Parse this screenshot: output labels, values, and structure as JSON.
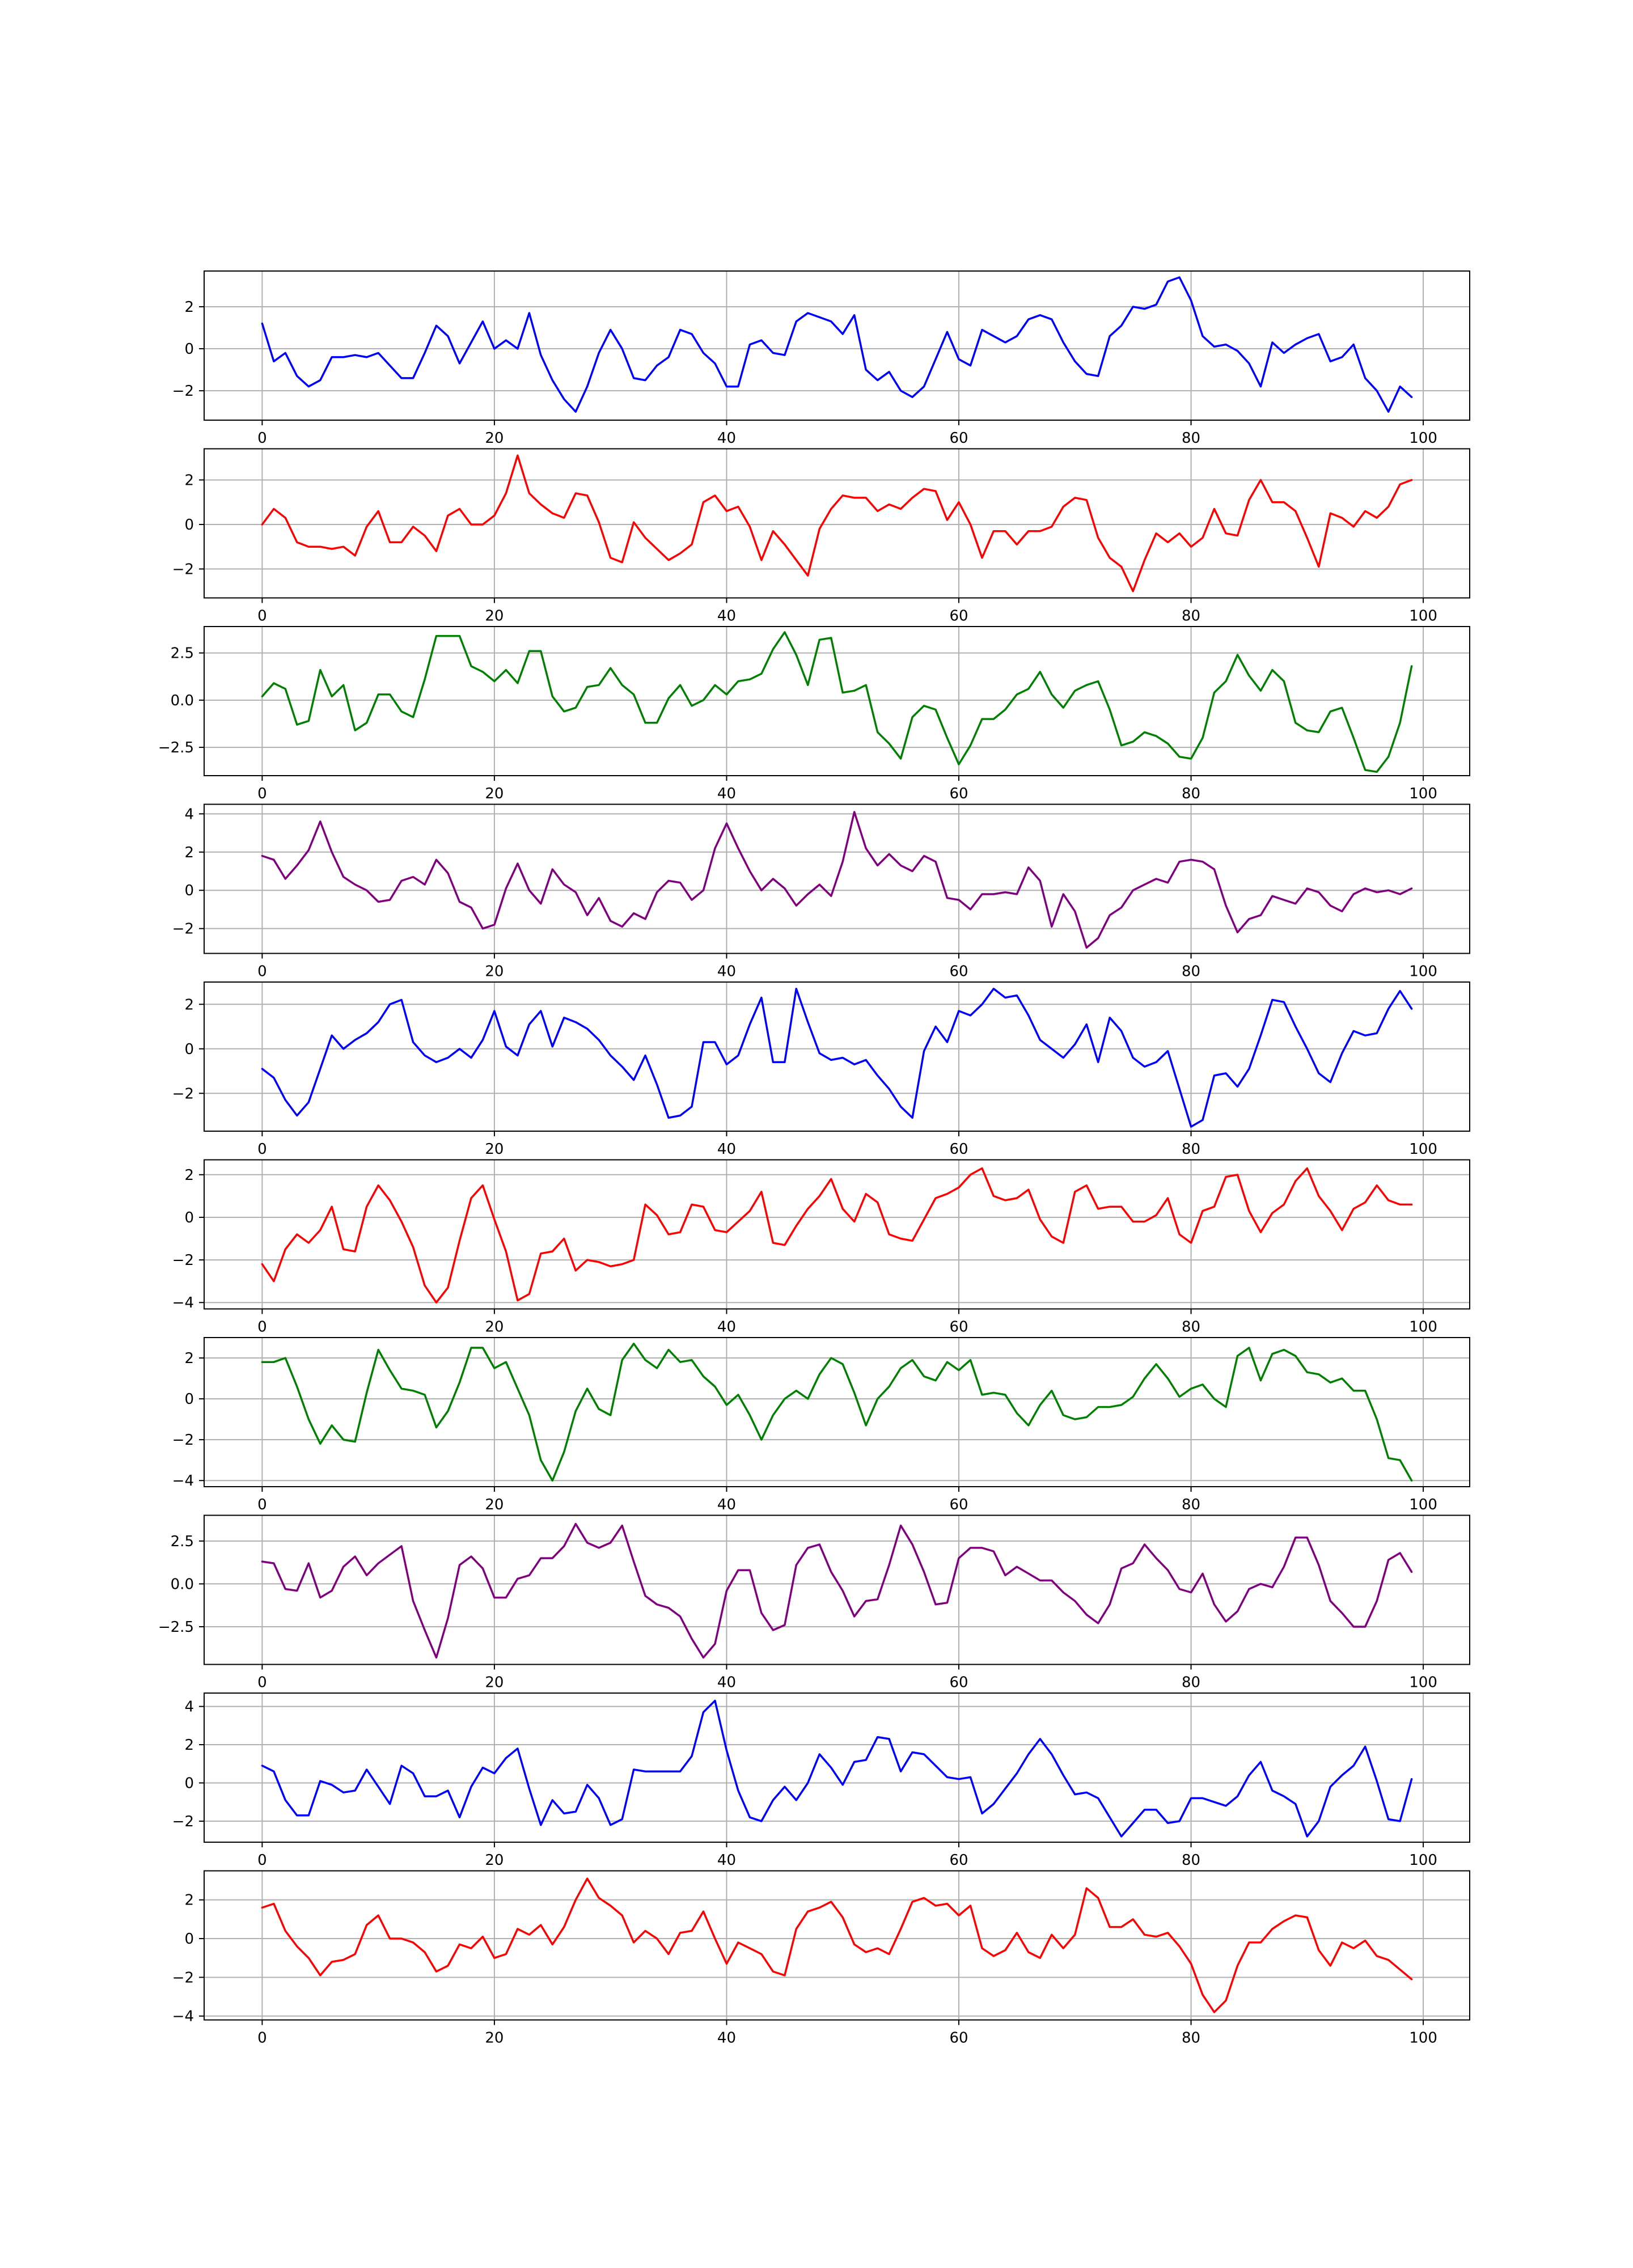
{
  "chart_data": [
    {
      "type": "line",
      "color": "#0000ff",
      "grid": true,
      "xlim": [
        -5,
        104
      ],
      "ylim": [
        -3.4,
        3.7
      ],
      "xticks": [
        0,
        20,
        40,
        60,
        80,
        100
      ],
      "yticks": [
        -2,
        0,
        2
      ],
      "xtick_labels": [
        "0",
        "20",
        "40",
        "60",
        "80",
        "100"
      ],
      "ytick_labels": [
        "−2",
        "0",
        "2"
      ],
      "y": [
        1.2,
        -0.6,
        -0.2,
        -1.3,
        -1.8,
        -1.5,
        -0.4,
        -0.4,
        -0.3,
        -0.4,
        -0.2,
        -0.8,
        -1.4,
        -1.4,
        -0.2,
        1.1,
        0.6,
        -0.7,
        0.3,
        1.3,
        0.0,
        0.4,
        0.0,
        1.7,
        -0.3,
        -1.5,
        -2.4,
        -3.0,
        -1.8,
        -0.2,
        0.9,
        0.0,
        -1.4,
        -1.5,
        -0.8,
        -0.4,
        0.9,
        0.7,
        -0.2,
        -0.7,
        -1.8,
        -1.8,
        0.2,
        0.4,
        -0.2,
        -0.3,
        1.3,
        1.7,
        1.5,
        1.3,
        0.7,
        1.6,
        -1.0,
        -1.5,
        -1.1,
        -2.0,
        -2.3,
        -1.8,
        -0.5,
        0.8,
        -0.5,
        -0.8,
        0.9,
        0.6,
        0.3,
        0.6,
        1.4,
        1.6,
        1.4,
        0.3,
        -0.6,
        -1.2,
        -1.3,
        0.6,
        1.1,
        2.0,
        1.9,
        2.1,
        3.2,
        3.4,
        2.3,
        0.6,
        0.1,
        0.2,
        -0.1,
        -0.7,
        -1.8,
        0.3,
        -0.2,
        0.2,
        0.5,
        0.7,
        -0.6,
        -0.4,
        0.2,
        -1.4,
        -2.0,
        -3.0,
        -1.8,
        -2.3
      ]
    },
    {
      "type": "line",
      "color": "#ff0000",
      "grid": true,
      "xlim": [
        -5,
        104
      ],
      "ylim": [
        -3.3,
        3.4
      ],
      "xticks": [
        0,
        20,
        40,
        60,
        80,
        100
      ],
      "yticks": [
        -2,
        0,
        2
      ],
      "xtick_labels": [
        "0",
        "20",
        "40",
        "60",
        "80",
        "100"
      ],
      "ytick_labels": [
        "−2",
        "0",
        "2"
      ],
      "y": [
        0.0,
        0.7,
        0.3,
        -0.8,
        -1.0,
        -1.0,
        -1.1,
        -1.0,
        -1.4,
        -0.1,
        0.6,
        -0.8,
        -0.8,
        -0.1,
        -0.5,
        -1.2,
        0.4,
        0.7,
        0.0,
        0.0,
        0.4,
        1.4,
        3.1,
        1.4,
        0.9,
        0.5,
        0.3,
        1.4,
        1.3,
        0.1,
        -1.5,
        -1.7,
        0.1,
        -0.6,
        -1.1,
        -1.6,
        -1.3,
        -0.9,
        1.0,
        1.3,
        0.6,
        0.8,
        -0.1,
        -1.6,
        -0.3,
        -0.9,
        -1.6,
        -2.3,
        -0.2,
        0.7,
        1.3,
        1.2,
        1.2,
        0.6,
        0.9,
        0.7,
        1.2,
        1.6,
        1.5,
        0.2,
        1.0,
        0.0,
        -1.5,
        -0.3,
        -0.3,
        -0.9,
        -0.3,
        -0.3,
        -0.1,
        0.8,
        1.2,
        1.1,
        -0.6,
        -1.5,
        -1.9,
        -3.0,
        -1.6,
        -0.4,
        -0.8,
        -0.4,
        -1.0,
        -0.6,
        0.7,
        -0.4,
        -0.5,
        1.1,
        2.0,
        1.0,
        1.0,
        0.6,
        -0.6,
        -1.9,
        0.5,
        0.3,
        -0.1,
        0.6,
        0.3,
        0.8,
        1.8,
        2.0
      ]
    },
    {
      "type": "line",
      "color": "#008000",
      "grid": true,
      "xlim": [
        -5,
        104
      ],
      "ylim": [
        -4.0,
        3.9
      ],
      "xticks": [
        0,
        20,
        40,
        60,
        80,
        100
      ],
      "yticks": [
        -2.5,
        0,
        2.5
      ],
      "xtick_labels": [
        "0",
        "20",
        "40",
        "60",
        "80",
        "100"
      ],
      "ytick_labels": [
        "−2.5",
        "0.0",
        "2.5"
      ],
      "y": [
        0.2,
        0.9,
        0.6,
        -1.3,
        -1.1,
        1.6,
        0.2,
        0.8,
        -1.6,
        -1.2,
        0.3,
        0.3,
        -0.6,
        -0.9,
        1.1,
        3.4,
        3.4,
        3.4,
        1.8,
        1.5,
        1.0,
        1.6,
        0.9,
        2.6,
        2.6,
        0.2,
        -0.6,
        -0.4,
        0.7,
        0.8,
        1.7,
        0.8,
        0.3,
        -1.2,
        -1.2,
        0.1,
        0.8,
        -0.3,
        0.0,
        0.8,
        0.3,
        1.0,
        1.1,
        1.4,
        2.7,
        3.6,
        2.4,
        0.8,
        3.2,
        3.3,
        0.4,
        0.5,
        0.8,
        -1.7,
        -2.3,
        -3.1,
        -0.9,
        -0.3,
        -0.5,
        -2.0,
        -3.4,
        -2.4,
        -1.0,
        -1.0,
        -0.5,
        0.3,
        0.6,
        1.5,
        0.3,
        -0.4,
        0.5,
        0.8,
        1.0,
        -0.5,
        -2.4,
        -2.2,
        -1.7,
        -1.9,
        -2.3,
        -3.0,
        -3.1,
        -2.0,
        0.4,
        1.0,
        2.4,
        1.3,
        0.5,
        1.6,
        1.0,
        -1.2,
        -1.6,
        -1.7,
        -0.6,
        -0.4,
        -2.0,
        -3.7,
        -3.8,
        -3.0,
        -1.2,
        1.8
      ]
    },
    {
      "type": "line",
      "color": "#800080",
      "grid": true,
      "xlim": [
        -5,
        104
      ],
      "ylim": [
        -3.3,
        4.5
      ],
      "xticks": [
        0,
        20,
        40,
        60,
        80,
        100
      ],
      "yticks": [
        -2,
        0,
        2,
        4
      ],
      "xtick_labels": [
        "0",
        "20",
        "40",
        "60",
        "80",
        "100"
      ],
      "ytick_labels": [
        "−2",
        "0",
        "2",
        "4"
      ],
      "y": [
        1.8,
        1.6,
        0.6,
        1.3,
        2.1,
        3.6,
        2.0,
        0.7,
        0.3,
        0.0,
        -0.6,
        -0.5,
        0.5,
        0.7,
        0.3,
        1.6,
        0.9,
        -0.6,
        -0.9,
        -2.0,
        -1.8,
        0.1,
        1.4,
        0.0,
        -0.7,
        1.1,
        0.3,
        -0.1,
        -1.3,
        -0.4,
        -1.6,
        -1.9,
        -1.2,
        -1.5,
        -0.1,
        0.5,
        0.4,
        -0.5,
        0.0,
        2.2,
        3.5,
        2.2,
        1.0,
        0.0,
        0.6,
        0.1,
        -0.8,
        -0.2,
        0.3,
        -0.3,
        1.5,
        4.1,
        2.2,
        1.3,
        1.9,
        1.3,
        1.0,
        1.8,
        1.5,
        -0.4,
        -0.5,
        -1.0,
        -0.2,
        -0.2,
        -0.1,
        -0.2,
        1.2,
        0.5,
        -1.9,
        -0.2,
        -1.1,
        -3.0,
        -2.5,
        -1.3,
        -0.9,
        0.0,
        0.3,
        0.6,
        0.4,
        1.5,
        1.6,
        1.5,
        1.1,
        -0.8,
        -2.2,
        -1.5,
        -1.3,
        -0.3,
        -0.5,
        -0.7,
        0.1,
        -0.1,
        -0.8,
        -1.1,
        -0.2,
        0.1,
        -0.1,
        0.0,
        -0.2,
        0.1
      ]
    },
    {
      "type": "line",
      "color": "#0000ff",
      "grid": true,
      "xlim": [
        -5,
        104
      ],
      "ylim": [
        -3.7,
        3.0
      ],
      "xticks": [
        0,
        20,
        40,
        60,
        80,
        100
      ],
      "yticks": [
        -2,
        0,
        2
      ],
      "xtick_labels": [
        "0",
        "20",
        "40",
        "60",
        "80",
        "100"
      ],
      "ytick_labels": [
        "−2",
        "0",
        "2"
      ],
      "y": [
        -0.9,
        -1.3,
        -2.3,
        -3.0,
        -2.4,
        -0.9,
        0.6,
        0.0,
        0.4,
        0.7,
        1.2,
        2.0,
        2.2,
        0.3,
        -0.3,
        -0.6,
        -0.4,
        0.0,
        -0.4,
        0.4,
        1.7,
        0.1,
        -0.3,
        1.1,
        1.7,
        0.1,
        1.4,
        1.2,
        0.9,
        0.4,
        -0.3,
        -0.8,
        -1.4,
        -0.3,
        -1.6,
        -3.1,
        -3.0,
        -2.6,
        0.3,
        0.3,
        -0.7,
        -0.3,
        1.1,
        2.3,
        -0.6,
        -0.6,
        2.7,
        1.2,
        -0.2,
        -0.5,
        -0.4,
        -0.7,
        -0.5,
        -1.2,
        -1.8,
        -2.6,
        -3.1,
        -0.1,
        1.0,
        0.3,
        1.7,
        1.5,
        2.0,
        2.7,
        2.3,
        2.4,
        1.5,
        0.4,
        0.0,
        -0.4,
        0.2,
        1.1,
        -0.6,
        1.4,
        0.8,
        -0.4,
        -0.8,
        -0.6,
        -0.1,
        -1.8,
        -3.5,
        -3.2,
        -1.2,
        -1.1,
        -1.7,
        -0.9,
        0.6,
        2.2,
        2.1,
        1.0,
        0.0,
        -1.1,
        -1.5,
        -0.2,
        0.8,
        0.6,
        0.7,
        1.8,
        2.6,
        1.8
      ]
    },
    {
      "type": "line",
      "color": "#ff0000",
      "grid": true,
      "xlim": [
        -5,
        104
      ],
      "ylim": [
        -4.3,
        2.7
      ],
      "xticks": [
        0,
        20,
        40,
        60,
        80,
        100
      ],
      "yticks": [
        -4,
        -2,
        0,
        2
      ],
      "xtick_labels": [
        "0",
        "20",
        "40",
        "60",
        "80",
        "100"
      ],
      "ytick_labels": [
        "−4",
        "−2",
        "0",
        "2"
      ],
      "y": [
        -2.2,
        -3.0,
        -1.5,
        -0.8,
        -1.2,
        -0.6,
        0.5,
        -1.5,
        -1.6,
        0.5,
        1.5,
        0.8,
        -0.2,
        -1.4,
        -3.2,
        -4.0,
        -3.3,
        -1.1,
        0.9,
        1.5,
        -0.1,
        -1.6,
        -3.9,
        -3.6,
        -1.7,
        -1.6,
        -1.0,
        -2.5,
        -2.0,
        -2.1,
        -2.3,
        -2.2,
        -2.0,
        0.6,
        0.1,
        -0.8,
        -0.7,
        0.6,
        0.5,
        -0.6,
        -0.7,
        -0.2,
        0.3,
        1.2,
        -1.2,
        -1.3,
        -0.4,
        0.4,
        1.0,
        1.8,
        0.4,
        -0.2,
        1.1,
        0.7,
        -0.8,
        -1.0,
        -1.1,
        -0.1,
        0.9,
        1.1,
        1.4,
        2.0,
        2.3,
        1.0,
        0.8,
        0.9,
        1.3,
        -0.1,
        -0.9,
        -1.2,
        1.2,
        1.5,
        0.4,
        0.5,
        0.5,
        -0.2,
        -0.2,
        0.1,
        0.9,
        -0.8,
        -1.2,
        0.3,
        0.5,
        1.9,
        2.0,
        0.3,
        -0.7,
        0.2,
        0.6,
        1.7,
        2.3,
        1.0,
        0.3,
        -0.6,
        0.4,
        0.7,
        1.5,
        0.8,
        0.6,
        0.6
      ]
    },
    {
      "type": "line",
      "color": "#008000",
      "grid": true,
      "xlim": [
        -5,
        104
      ],
      "ylim": [
        -4.3,
        3.0
      ],
      "xticks": [
        0,
        20,
        40,
        60,
        80,
        100
      ],
      "yticks": [
        -4,
        -2,
        0,
        2
      ],
      "xtick_labels": [
        "0",
        "20",
        "40",
        "60",
        "80",
        "100"
      ],
      "ytick_labels": [
        "−4",
        "−2",
        "0",
        "2"
      ],
      "y": [
        1.8,
        1.8,
        2.0,
        0.6,
        -1.0,
        -2.2,
        -1.3,
        -2.0,
        -2.1,
        0.3,
        2.4,
        1.4,
        0.5,
        0.4,
        0.2,
        -1.4,
        -0.6,
        0.8,
        2.5,
        2.5,
        1.5,
        1.8,
        0.5,
        -0.8,
        -3.0,
        -4.0,
        -2.6,
        -0.6,
        0.5,
        -0.5,
        -0.8,
        1.9,
        2.7,
        1.9,
        1.5,
        2.4,
        1.8,
        1.9,
        1.1,
        0.6,
        -0.3,
        0.2,
        -0.8,
        -2.0,
        -0.8,
        0.0,
        0.4,
        0.0,
        1.2,
        2.0,
        1.7,
        0.3,
        -1.3,
        0.0,
        0.6,
        1.5,
        1.9,
        1.1,
        0.9,
        1.8,
        1.4,
        1.9,
        0.2,
        0.3,
        0.2,
        -0.7,
        -1.3,
        -0.3,
        0.4,
        -0.8,
        -1.0,
        -0.9,
        -0.4,
        -0.4,
        -0.3,
        0.1,
        1.0,
        1.7,
        1.0,
        0.1,
        0.5,
        0.7,
        0.0,
        -0.4,
        2.1,
        2.5,
        0.9,
        2.2,
        2.4,
        2.1,
        1.3,
        1.2,
        0.8,
        1.0,
        0.4,
        0.4,
        -1.0,
        -2.9,
        -3.0,
        -4.0
      ]
    },
    {
      "type": "line",
      "color": "#800080",
      "grid": true,
      "xlim": [
        -5,
        104
      ],
      "ylim": [
        -4.7,
        4.0
      ],
      "xticks": [
        0,
        20,
        40,
        60,
        80,
        100
      ],
      "yticks": [
        -2.5,
        0,
        2.5
      ],
      "xtick_labels": [
        "0",
        "20",
        "40",
        "60",
        "80",
        "100"
      ],
      "ytick_labels": [
        "−2.5",
        "0.0",
        "2.5"
      ],
      "y": [
        1.3,
        1.2,
        -0.3,
        -0.4,
        1.2,
        -0.8,
        -0.4,
        1.0,
        1.6,
        0.5,
        1.2,
        1.7,
        2.2,
        -1.0,
        -2.7,
        -4.3,
        -2.0,
        1.1,
        1.6,
        0.9,
        -0.8,
        -0.8,
        0.3,
        0.5,
        1.5,
        1.5,
        2.2,
        3.5,
        2.4,
        2.1,
        2.4,
        3.4,
        1.3,
        -0.7,
        -1.2,
        -1.4,
        -1.9,
        -3.2,
        -4.3,
        -3.5,
        -0.4,
        0.8,
        0.8,
        -1.7,
        -2.7,
        -2.4,
        1.1,
        2.1,
        2.3,
        0.7,
        -0.4,
        -1.9,
        -1.0,
        -0.9,
        1.1,
        3.4,
        2.3,
        0.7,
        -1.2,
        -1.1,
        1.5,
        2.1,
        2.1,
        1.9,
        0.5,
        1.0,
        0.6,
        0.2,
        0.2,
        -0.5,
        -1.0,
        -1.8,
        -2.3,
        -1.2,
        0.9,
        1.2,
        2.3,
        1.5,
        0.8,
        -0.3,
        -0.5,
        0.6,
        -1.2,
        -2.2,
        -1.6,
        -0.3,
        0.0,
        -0.2,
        1.0,
        2.7,
        2.7,
        1.1,
        -1.0,
        -1.7,
        -2.5,
        -2.5,
        -1.0,
        1.4,
        1.8,
        0.7
      ]
    },
    {
      "type": "line",
      "color": "#0000ff",
      "grid": true,
      "xlim": [
        -5,
        104
      ],
      "ylim": [
        -3.1,
        4.7
      ],
      "xticks": [
        0,
        20,
        40,
        60,
        80,
        100
      ],
      "yticks": [
        -2,
        0,
        2,
        4
      ],
      "xtick_labels": [
        "0",
        "20",
        "40",
        "60",
        "80",
        "100"
      ],
      "ytick_labels": [
        "−2",
        "0",
        "2",
        "4"
      ],
      "y": [
        0.9,
        0.6,
        -0.9,
        -1.7,
        -1.7,
        0.1,
        -0.1,
        -0.5,
        -0.4,
        0.7,
        -0.2,
        -1.1,
        0.9,
        0.5,
        -0.7,
        -0.7,
        -0.4,
        -1.8,
        -0.2,
        0.8,
        0.5,
        1.3,
        1.8,
        -0.3,
        -2.2,
        -0.9,
        -1.6,
        -1.5,
        -0.1,
        -0.8,
        -2.2,
        -1.9,
        0.7,
        0.6,
        0.6,
        0.6,
        0.6,
        1.4,
        3.7,
        4.3,
        1.7,
        -0.4,
        -1.8,
        -2.0,
        -0.9,
        -0.2,
        -0.9,
        0.0,
        1.5,
        0.8,
        -0.1,
        1.1,
        1.2,
        2.4,
        2.3,
        0.6,
        1.6,
        1.5,
        0.9,
        0.3,
        0.2,
        0.3,
        -1.6,
        -1.1,
        -0.3,
        0.5,
        1.5,
        2.3,
        1.5,
        0.4,
        -0.6,
        -0.5,
        -0.8,
        -1.8,
        -2.8,
        -2.1,
        -1.4,
        -1.4,
        -2.1,
        -2.0,
        -0.8,
        -0.8,
        -1.0,
        -1.2,
        -0.7,
        0.4,
        1.1,
        -0.4,
        -0.7,
        -1.1,
        -2.8,
        -2.0,
        -0.2,
        0.4,
        0.9,
        1.9,
        0.1,
        -1.9,
        -2.0,
        0.2
      ]
    },
    {
      "type": "line",
      "color": "#ff0000",
      "grid": true,
      "xlim": [
        -5,
        104
      ],
      "ylim": [
        -4.2,
        3.5
      ],
      "xticks": [
        0,
        20,
        40,
        60,
        80,
        100
      ],
      "yticks": [
        -4,
        -2,
        0,
        2
      ],
      "xtick_labels": [
        "0",
        "20",
        "40",
        "60",
        "80",
        "100"
      ],
      "ytick_labels": [
        "−4",
        "−2",
        "0",
        "2"
      ],
      "y": [
        1.6,
        1.8,
        0.4,
        -0.4,
        -1.0,
        -1.9,
        -1.2,
        -1.1,
        -0.8,
        0.7,
        1.2,
        0.0,
        0.0,
        -0.2,
        -0.7,
        -1.7,
        -1.4,
        -0.3,
        -0.5,
        0.1,
        -1.0,
        -0.8,
        0.5,
        0.2,
        0.7,
        -0.3,
        0.6,
        2.0,
        3.1,
        2.1,
        1.7,
        1.2,
        -0.2,
        0.4,
        0.0,
        -0.8,
        0.3,
        0.4,
        1.4,
        0.0,
        -1.3,
        -0.2,
        -0.5,
        -0.8,
        -1.7,
        -1.9,
        0.5,
        1.4,
        1.6,
        1.9,
        1.1,
        -0.3,
        -0.7,
        -0.5,
        -0.8,
        0.5,
        1.9,
        2.1,
        1.7,
        1.8,
        1.2,
        1.7,
        -0.5,
        -0.9,
        -0.6,
        0.3,
        -0.7,
        -1.0,
        0.2,
        -0.5,
        0.2,
        2.6,
        2.1,
        0.6,
        0.6,
        1.0,
        0.2,
        0.1,
        0.3,
        -0.4,
        -1.3,
        -2.9,
        -3.8,
        -3.2,
        -1.4,
        -0.2,
        -0.2,
        0.5,
        0.9,
        1.2,
        1.1,
        -0.6,
        -1.4,
        -0.2,
        -0.5,
        -0.1,
        -0.9,
        -1.1,
        -1.6,
        -2.1
      ]
    }
  ]
}
